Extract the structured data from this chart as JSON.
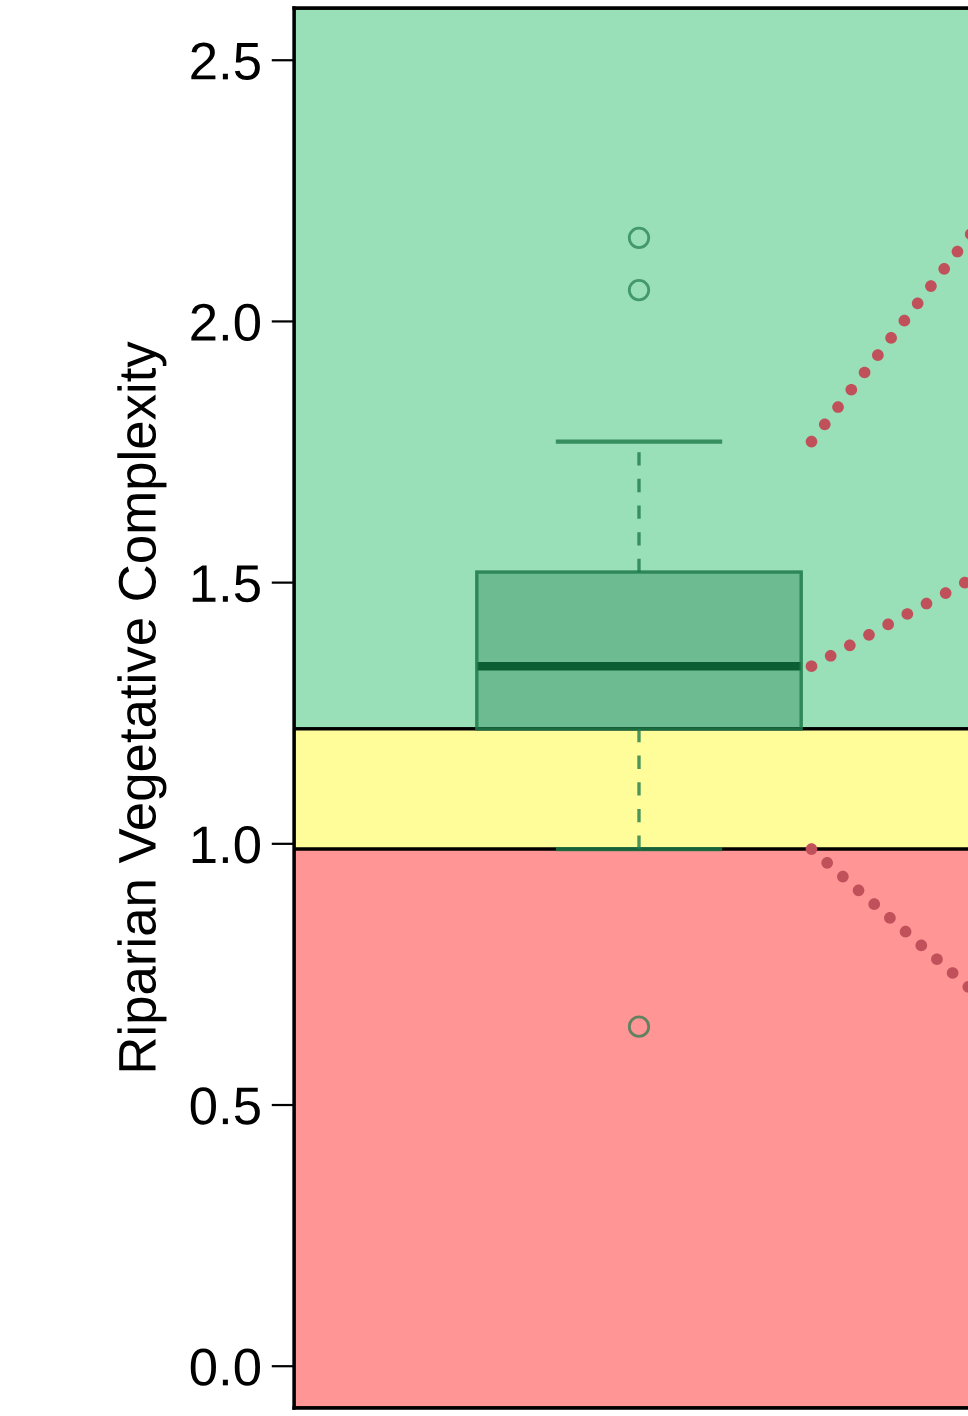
{
  "chart_data": {
    "type": "box",
    "ylabel": "Riparian Vegetative Complexity",
    "categories": [
      null
    ],
    "boxes": [
      {
        "low": 0.99,
        "q1": 1.22,
        "median": 1.34,
        "q3": 1.52,
        "high": 1.77,
        "outliers": [
          2.16,
          2.06,
          0.65
        ]
      }
    ],
    "color": "#1e7a4a",
    "ylim": [
      -0.08,
      2.6
    ],
    "yticks": [
      {
        "value": 0,
        "label": "0.0"
      },
      0.5,
      {
        "value": 1,
        "label": "1.0"
      },
      1.5,
      {
        "value": 2,
        "label": "2.0"
      },
      2.5
    ],
    "tick_labels": "y",
    "grid": false,
    "bands": [
      {
        "axis": "y",
        "from": 1.22,
        "to": 2.6,
        "color": "#99dfb8"
      },
      {
        "axis": "y",
        "from": 0.99,
        "to": 1.22,
        "color": "#fffd99"
      },
      {
        "axis": "y",
        "from": -0.08,
        "to": 0.99,
        "color": "#ff9595"
      }
    ]
  }
}
